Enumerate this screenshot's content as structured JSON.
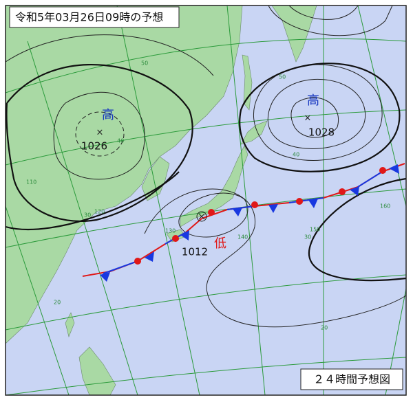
{
  "title": "令和5年03月26日09時の予想",
  "footer_label": "２４時間予想図",
  "pressure_systems": [
    {
      "kind": "高",
      "value": "1026"
    },
    {
      "kind": "高",
      "value": "1028"
    },
    {
      "kind": "低",
      "value": "1012"
    }
  ],
  "grid_labels": [
    "50",
    "40",
    "30",
    "20",
    "50",
    "40",
    "30",
    "20",
    "110",
    "120",
    "130",
    "140",
    "150",
    "160"
  ]
}
